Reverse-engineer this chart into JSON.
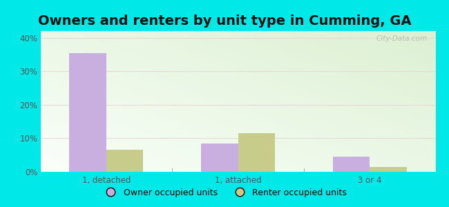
{
  "title": "Owners and renters by unit type in Cumming, GA",
  "categories": [
    "1, detached",
    "1, attached",
    "3 or 4"
  ],
  "owner_values": [
    35.5,
    8.5,
    4.5
  ],
  "renter_values": [
    6.5,
    11.5,
    1.5
  ],
  "owner_color": "#c9aee0",
  "renter_color": "#c8cc8a",
  "ylim": [
    0,
    42
  ],
  "yticks": [
    0,
    10,
    20,
    30,
    40
  ],
  "ytick_labels": [
    "0%",
    "10%",
    "20%",
    "30%",
    "40%"
  ],
  "bar_width": 0.28,
  "outer_background": "#00e8e8",
  "legend_owner": "Owner occupied units",
  "legend_renter": "Renter occupied units",
  "title_fontsize": 14,
  "tick_fontsize": 8.5,
  "legend_fontsize": 9,
  "watermark": "City-Data.com"
}
